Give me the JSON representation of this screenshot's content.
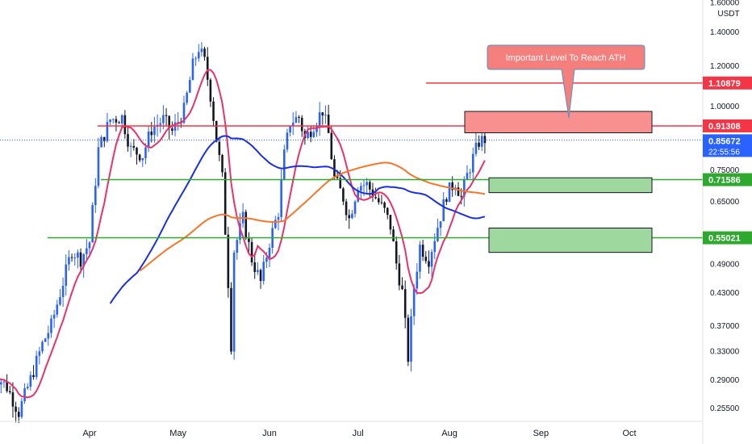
{
  "chart_data": {
    "type": "candlestick",
    "quote_currency": "USDT",
    "price_scale": "log",
    "ylim": [
      0.235,
      1.6
    ],
    "price_ticks": [
      "1.60000",
      "1.40000",
      "1.20000",
      "1.00000",
      "0.75000",
      "0.65000",
      "0.49000",
      "0.43000",
      "0.37000",
      "0.33000",
      "0.29000",
      "0.25500"
    ],
    "time_ticks": [
      "Apr",
      "May",
      "Jun",
      "Jul",
      "Aug",
      "Sep",
      "Oct"
    ],
    "current_price": "0.85672",
    "countdown": "22:55:56",
    "horizontal_levels": [
      {
        "price": "1.10879",
        "color": "#f23645"
      },
      {
        "price": "0.91308",
        "color": "#f23645"
      },
      {
        "price": "0.71586",
        "color": "#2ea82e"
      },
      {
        "price": "0.55021",
        "color": "#2ea82e"
      }
    ],
    "zones": [
      {
        "label": "resistance",
        "from": 0.885,
        "to": 0.975,
        "color": "#f89090"
      },
      {
        "label": "support-1",
        "from": 0.675,
        "to": 0.722,
        "color": "#9fd89f"
      },
      {
        "label": "support-2",
        "from": 0.515,
        "to": 0.575,
        "color": "#9fd89f"
      }
    ],
    "annotation": "Important Level To Reach ATH",
    "moving_averages": [
      {
        "color": "#e8336a"
      },
      {
        "color": "#1a2fe0"
      },
      {
        "color": "#f5762a"
      }
    ],
    "candle_colors": {
      "up": "#2962ff",
      "down": "#131722"
    },
    "grid": false
  }
}
